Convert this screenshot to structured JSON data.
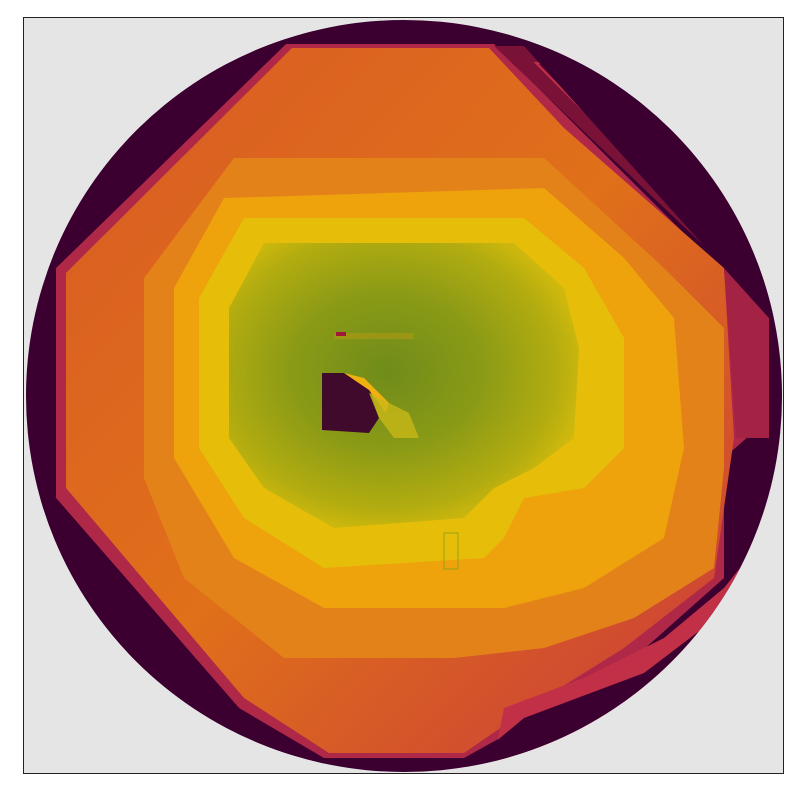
{
  "image": {
    "description_free": true,
    "colors": {
      "background": "#e5e5e5",
      "disk_outer": "#3b0030",
      "dark_red": "#8a1a3c",
      "crimson": "#c2304a",
      "red_orange": "#d24a2c",
      "orange": "#e06a18",
      "light_orange": "#ea8a12",
      "amber": "#f0a80a",
      "yellow": "#e8c00a",
      "olive_yellow": "#b8b010",
      "olive": "#98a014",
      "green_olive": "#7e9418",
      "center_dark": "#3f0a2c"
    }
  }
}
